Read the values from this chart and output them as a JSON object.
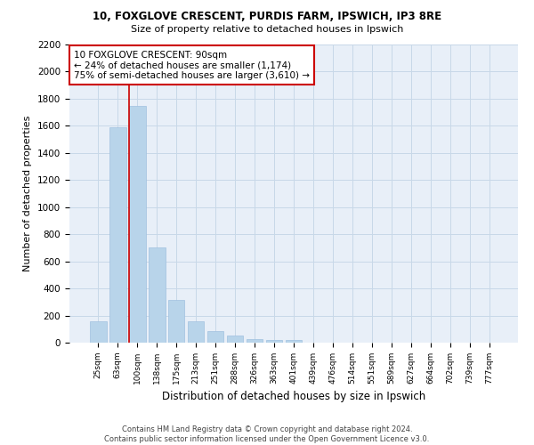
{
  "title1": "10, FOXGLOVE CRESCENT, PURDIS FARM, IPSWICH, IP3 8RE",
  "title2": "Size of property relative to detached houses in Ipswich",
  "xlabel": "Distribution of detached houses by size in Ipswich",
  "ylabel": "Number of detached properties",
  "bar_labels": [
    "25sqm",
    "63sqm",
    "100sqm",
    "138sqm",
    "175sqm",
    "213sqm",
    "251sqm",
    "288sqm",
    "326sqm",
    "363sqm",
    "401sqm",
    "439sqm",
    "476sqm",
    "514sqm",
    "551sqm",
    "589sqm",
    "627sqm",
    "664sqm",
    "702sqm",
    "739sqm",
    "777sqm"
  ],
  "bar_values": [
    160,
    1590,
    1750,
    700,
    315,
    155,
    85,
    50,
    25,
    20,
    20,
    0,
    0,
    0,
    0,
    0,
    0,
    0,
    0,
    0,
    0
  ],
  "bar_color": "#b8d4ea",
  "bar_edge_color": "#a0c0e0",
  "annotation_line1": "10 FOXGLOVE CRESCENT: 90sqm",
  "annotation_line2": "← 24% of detached houses are smaller (1,174)",
  "annotation_line3": "75% of semi-detached houses are larger (3,610) →",
  "vline_color": "#cc0000",
  "vline_x_index": 2,
  "ylim": [
    0,
    2200
  ],
  "yticks": [
    0,
    200,
    400,
    600,
    800,
    1000,
    1200,
    1400,
    1600,
    1800,
    2000,
    2200
  ],
  "footer_line1": "Contains HM Land Registry data © Crown copyright and database right 2024.",
  "footer_line2": "Contains public sector information licensed under the Open Government Licence v3.0.",
  "background_color": "#ffffff",
  "grid_color": "#c8d8e8"
}
